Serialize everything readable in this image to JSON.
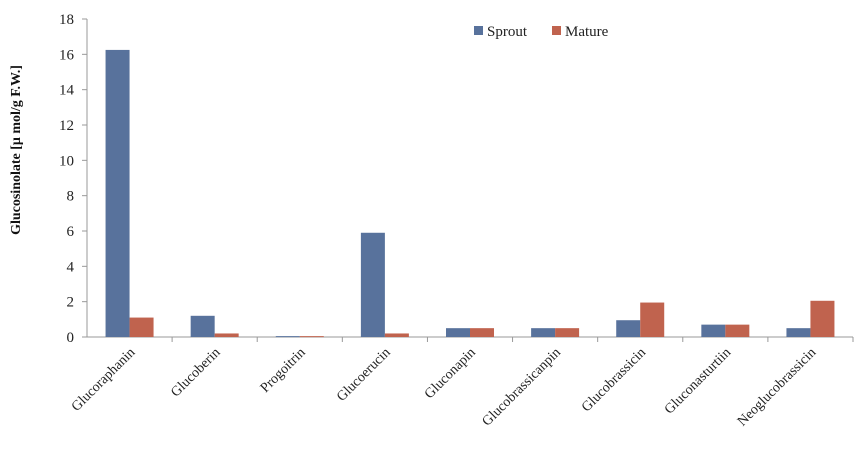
{
  "chart_data": {
    "type": "bar",
    "title": "",
    "xlabel": "",
    "ylabel": "Glucosinolate [μ mol/g F.W.]",
    "ylim": [
      0,
      18
    ],
    "yticks": [
      "0",
      "2",
      "4",
      "6",
      "8",
      "10",
      "12",
      "14",
      "16",
      "18"
    ],
    "grid": false,
    "legend_position": "top-right",
    "categories": [
      "Glucoraphanin",
      "Glucoberin",
      "Progoitrin",
      "Glucoerucin",
      "Gluconapin",
      "Glucobrassicanpin",
      "Glucobrassicin",
      "Gluconasturtiin",
      "Neoglucobrassicin"
    ],
    "series": [
      {
        "name": "Sprout",
        "color": "#58729c",
        "values": [
          16.25,
          1.2,
          0.05,
          5.9,
          0.5,
          0.5,
          0.95,
          0.7,
          0.5
        ]
      },
      {
        "name": "Mature",
        "color": "#c0634e",
        "values": [
          1.1,
          0.2,
          0.05,
          0.2,
          0.5,
          0.5,
          1.95,
          0.7,
          2.05
        ]
      }
    ]
  }
}
